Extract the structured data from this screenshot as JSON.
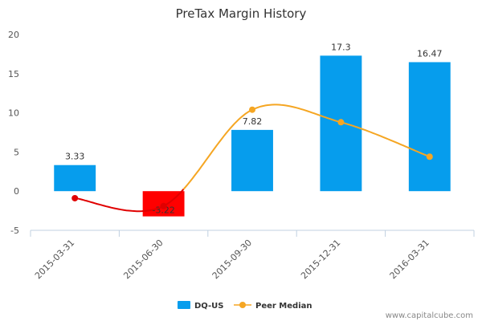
{
  "chart_data": {
    "type": "bar",
    "title": "PreTax Margin History",
    "categories": [
      "2015-03-31",
      "2015-06-30",
      "2015-09-30",
      "2015-12-31",
      "2016-03-31"
    ],
    "ylim": [
      -5,
      20
    ],
    "yticks": [
      -5,
      0,
      5,
      10,
      15,
      20
    ],
    "grid": false,
    "legend_position": "bottom",
    "series": [
      {
        "name": "DQ-US",
        "type": "bar",
        "values": [
          3.33,
          -3.22,
          7.82,
          17.3,
          16.47
        ],
        "labels": [
          "3.33",
          "-3.22",
          "7.82",
          "17.3",
          "16.47"
        ],
        "color": "#069ded",
        "negative_color": "#ff0000"
      },
      {
        "name": "Peer Median",
        "type": "line",
        "smooth": true,
        "values": [
          -0.9,
          -1.9,
          10.4,
          8.8,
          4.4
        ],
        "color": "#f5a623",
        "below_zero_color": "#e00000"
      }
    ]
  },
  "footer": {
    "watermark": "www.capitalcube.com"
  }
}
